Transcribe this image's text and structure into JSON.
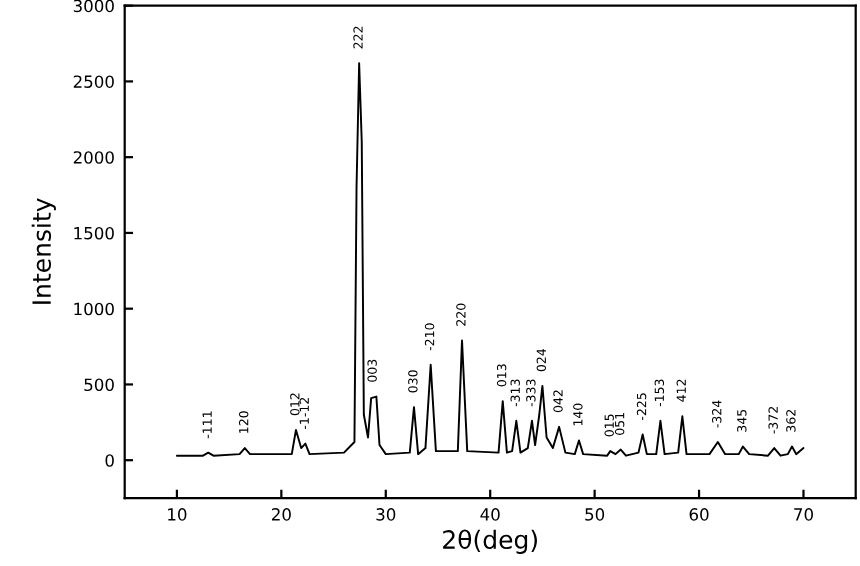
{
  "chart_data": {
    "type": "line",
    "xlabel": "2θ(deg)",
    "ylabel": "Intensity",
    "xlim": [
      5,
      75
    ],
    "xticks": [
      10,
      20,
      30,
      40,
      50,
      60,
      70
    ],
    "ylim": [
      -250,
      3000
    ],
    "yticks": [
      0,
      500,
      1000,
      1500,
      2000,
      2500,
      3000
    ],
    "grid": false,
    "marker": "none",
    "line_style": "solid",
    "series": [
      {
        "color": "#000000",
        "x": [
          10,
          12.5,
          13,
          13.5,
          16,
          16.5,
          17,
          21,
          21.4,
          21.9,
          22.3,
          22.7,
          26,
          27,
          27.2,
          27.45,
          27.7,
          27.9,
          28.3,
          28.6,
          29.1,
          29.4,
          30,
          32.3,
          32.7,
          33.1,
          33.8,
          34.3,
          34.8,
          36.9,
          37.3,
          37.8,
          40.8,
          41.2,
          41.6,
          42.1,
          42.5,
          42.9,
          43.6,
          44,
          44.3,
          44.7,
          45.0,
          45.4,
          46,
          46.6,
          47.2,
          48.1,
          48.5,
          48.9,
          51.2,
          51.5,
          52,
          52.5,
          53,
          54.2,
          54.6,
          55,
          55.9,
          56.3,
          56.7,
          58,
          58.4,
          58.8,
          61,
          61.8,
          62.5,
          63.8,
          64.2,
          64.8,
          66.6,
          67.2,
          67.8,
          68.5,
          68.9,
          69.3,
          70
        ],
        "values": [
          30,
          30,
          50,
          30,
          40,
          80,
          40,
          40,
          200,
          80,
          110,
          40,
          50,
          120,
          1800,
          2620,
          2100,
          300,
          150,
          410,
          420,
          100,
          40,
          50,
          350,
          40,
          80,
          630,
          60,
          60,
          790,
          60,
          50,
          390,
          50,
          60,
          260,
          50,
          80,
          260,
          100,
          300,
          490,
          150,
          80,
          220,
          50,
          40,
          130,
          40,
          30,
          60,
          40,
          70,
          30,
          50,
          170,
          40,
          40,
          260,
          40,
          50,
          290,
          40,
          40,
          120,
          40,
          40,
          90,
          40,
          30,
          80,
          30,
          40,
          90,
          40,
          80
        ]
      }
    ],
    "annotations": [
      {
        "text": "-111",
        "x": 13,
        "y": 50
      },
      {
        "text": "120",
        "x": 16.5,
        "y": 80
      },
      {
        "text": "012",
        "x": 21.4,
        "y": 200
      },
      {
        "text": "-1-12",
        "x": 22.3,
        "y": 110
      },
      {
        "text": "222",
        "x": 27.45,
        "y": 2620
      },
      {
        "text": "003",
        "x": 28.8,
        "y": 420
      },
      {
        "text": "030",
        "x": 32.7,
        "y": 350
      },
      {
        "text": "-210",
        "x": 34.3,
        "y": 630
      },
      {
        "text": "220",
        "x": 37.3,
        "y": 790
      },
      {
        "text": "013",
        "x": 41.2,
        "y": 390
      },
      {
        "text": "-313",
        "x": 42.5,
        "y": 260
      },
      {
        "text": "-333",
        "x": 44,
        "y": 260
      },
      {
        "text": "024",
        "x": 45.0,
        "y": 490
      },
      {
        "text": "042",
        "x": 46.6,
        "y": 220
      },
      {
        "text": "140",
        "x": 48.5,
        "y": 130
      },
      {
        "text": "015",
        "x": 51.5,
        "y": 60
      },
      {
        "text": "051",
        "x": 52.5,
        "y": 70
      },
      {
        "text": "-225",
        "x": 54.6,
        "y": 170
      },
      {
        "text": "-153",
        "x": 56.3,
        "y": 260
      },
      {
        "text": "412",
        "x": 58.4,
        "y": 290
      },
      {
        "text": "-324",
        "x": 61.8,
        "y": 120
      },
      {
        "text": "345",
        "x": 64.2,
        "y": 90
      },
      {
        "text": "-372",
        "x": 67.2,
        "y": 80
      },
      {
        "text": "362",
        "x": 68.9,
        "y": 90
      }
    ]
  }
}
